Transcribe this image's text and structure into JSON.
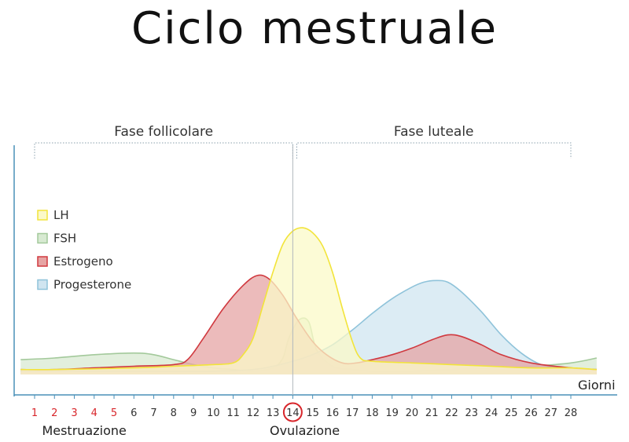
{
  "chart_data": {
    "type": "area",
    "title": "Ciclo mestruale",
    "xlabel": "Giorni",
    "xlim": [
      1,
      28
    ],
    "ticks": [
      "1",
      "2",
      "3",
      "4",
      "5",
      "6",
      "7",
      "8",
      "9",
      "10",
      "11",
      "12",
      "13",
      "14",
      "15",
      "16",
      "17",
      "18",
      "19",
      "20",
      "21",
      "22",
      "23",
      "24",
      "25",
      "26",
      "27",
      "28"
    ],
    "highlighted_ticks": [
      "1",
      "2",
      "3",
      "4",
      "5"
    ],
    "circled_tick": "14",
    "phases": [
      {
        "label": "Fase follicolare",
        "from": 1,
        "to": 14
      },
      {
        "label": "Fase luteale",
        "from": 14.2,
        "to": 28
      }
    ],
    "annotations": [
      {
        "text": "Mestruazione",
        "day": 3.5
      },
      {
        "text": "Ovulazione",
        "day": 14.6
      }
    ],
    "ovulation_day": 14,
    "series": [
      {
        "name": "LH",
        "fill": "#fbf9c8",
        "stroke": "#f2e43a",
        "points": [
          [
            0.3,
            0.03
          ],
          [
            2,
            0.03
          ],
          [
            6,
            0.04
          ],
          [
            8,
            0.05
          ],
          [
            10,
            0.06
          ],
          [
            11,
            0.07
          ],
          [
            11.5,
            0.12
          ],
          [
            12,
            0.22
          ],
          [
            12.5,
            0.42
          ],
          [
            13,
            0.62
          ],
          [
            13.5,
            0.79
          ],
          [
            14,
            0.87
          ],
          [
            14.5,
            0.89
          ],
          [
            15,
            0.86
          ],
          [
            15.5,
            0.78
          ],
          [
            16,
            0.62
          ],
          [
            16.5,
            0.4
          ],
          [
            17,
            0.2
          ],
          [
            17.4,
            0.1
          ],
          [
            18,
            0.08
          ],
          [
            20,
            0.07
          ],
          [
            22,
            0.06
          ],
          [
            24,
            0.05
          ],
          [
            26,
            0.04
          ],
          [
            28,
            0.04
          ],
          [
            29.3,
            0.03
          ]
        ]
      },
      {
        "name": "FSH",
        "fill": "#d8ead2",
        "stroke": "#a3c99b",
        "points": [
          [
            0.3,
            0.09
          ],
          [
            2,
            0.1
          ],
          [
            4,
            0.12
          ],
          [
            6,
            0.13
          ],
          [
            7,
            0.12
          ],
          [
            8,
            0.09
          ],
          [
            9,
            0.06
          ],
          [
            10,
            0.04
          ],
          [
            11,
            0.03
          ],
          [
            12,
            0.02
          ],
          [
            13,
            0.04
          ],
          [
            13.5,
            0.1
          ],
          [
            13.8,
            0.22
          ],
          [
            14.3,
            0.33
          ],
          [
            14.8,
            0.32
          ],
          [
            15.2,
            0.15
          ],
          [
            16,
            0.05
          ],
          [
            17,
            0.03
          ],
          [
            18,
            0.02
          ],
          [
            20,
            0.02
          ],
          [
            22,
            0.03
          ],
          [
            24,
            0.04
          ],
          [
            26,
            0.05
          ],
          [
            28,
            0.07
          ],
          [
            29.3,
            0.1
          ]
        ]
      },
      {
        "name": "Estrogeno",
        "fill": "#e6a4a4",
        "stroke": "#d0393f",
        "points": [
          [
            0.3,
            0.03
          ],
          [
            2,
            0.03
          ],
          [
            4,
            0.04
          ],
          [
            6,
            0.05
          ],
          [
            8,
            0.06
          ],
          [
            8.7,
            0.09
          ],
          [
            9.5,
            0.22
          ],
          [
            10.5,
            0.4
          ],
          [
            11.5,
            0.54
          ],
          [
            12.2,
            0.6
          ],
          [
            12.8,
            0.58
          ],
          [
            13.5,
            0.48
          ],
          [
            14.2,
            0.34
          ],
          [
            15,
            0.2
          ],
          [
            15.7,
            0.12
          ],
          [
            16.5,
            0.07
          ],
          [
            17.2,
            0.07
          ],
          [
            18,
            0.09
          ],
          [
            19,
            0.12
          ],
          [
            20,
            0.16
          ],
          [
            21,
            0.21
          ],
          [
            21.8,
            0.24
          ],
          [
            22.5,
            0.23
          ],
          [
            23.5,
            0.18
          ],
          [
            24.5,
            0.12
          ],
          [
            26,
            0.07
          ],
          [
            28,
            0.04
          ],
          [
            29.3,
            0.03
          ]
        ]
      },
      {
        "name": "Progesterone",
        "fill": "#d0e5f0",
        "stroke": "#8fc3da",
        "points": [
          [
            0.3,
            0.02
          ],
          [
            6,
            0.02
          ],
          [
            10,
            0.02
          ],
          [
            12,
            0.03
          ],
          [
            13,
            0.05
          ],
          [
            14,
            0.08
          ],
          [
            15,
            0.12
          ],
          [
            16,
            0.18
          ],
          [
            17,
            0.27
          ],
          [
            18,
            0.37
          ],
          [
            19,
            0.46
          ],
          [
            20,
            0.53
          ],
          [
            20.6,
            0.56
          ],
          [
            21.2,
            0.57
          ],
          [
            21.8,
            0.56
          ],
          [
            22.5,
            0.5
          ],
          [
            23.5,
            0.38
          ],
          [
            24.5,
            0.24
          ],
          [
            25.5,
            0.13
          ],
          [
            26.5,
            0.06
          ],
          [
            27.5,
            0.04
          ],
          [
            29.3,
            0.03
          ]
        ]
      }
    ],
    "legend": [
      "LH",
      "FSH",
      "Estrogeno",
      "Progesterone"
    ],
    "legend_position": "left",
    "colors": {
      "axis": "#4a90b8",
      "highlight_tick": "#d8262b",
      "circle": "#d8262b",
      "bracket": "#8aa0ad",
      "ovulation_line": "#b0b7bd"
    }
  }
}
